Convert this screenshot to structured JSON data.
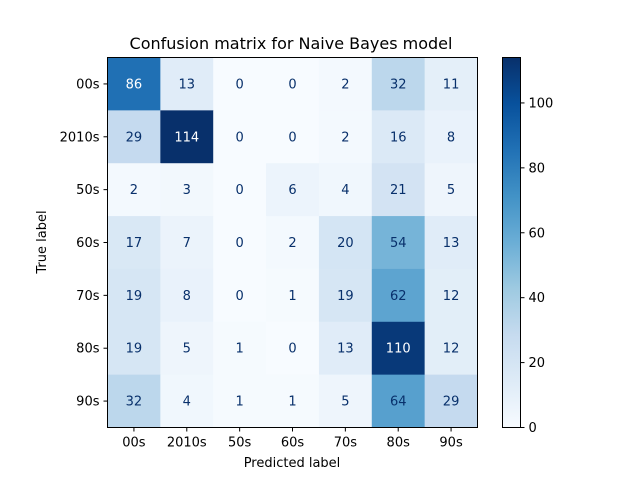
{
  "chart_data": {
    "type": "heatmap",
    "title": "Confusion matrix for Naive Bayes model",
    "xlabel": "Predicted label",
    "ylabel": "True label",
    "x_categories": [
      "00s",
      "2010s",
      "50s",
      "60s",
      "70s",
      "80s",
      "90s"
    ],
    "y_categories": [
      "00s",
      "2010s",
      "50s",
      "60s",
      "70s",
      "80s",
      "90s"
    ],
    "values": [
      [
        86,
        13,
        0,
        0,
        2,
        32,
        11
      ],
      [
        29,
        114,
        0,
        0,
        2,
        16,
        8
      ],
      [
        2,
        3,
        0,
        6,
        4,
        21,
        5
      ],
      [
        17,
        7,
        0,
        2,
        20,
        54,
        13
      ],
      [
        19,
        8,
        0,
        1,
        19,
        62,
        12
      ],
      [
        19,
        5,
        1,
        0,
        13,
        110,
        12
      ],
      [
        32,
        4,
        1,
        1,
        5,
        64,
        29
      ]
    ],
    "colormap": "Blues",
    "colorbar": {
      "min": 0,
      "max": 114,
      "ticks": [
        0,
        20,
        40,
        60,
        80,
        100
      ]
    },
    "grid": false
  }
}
